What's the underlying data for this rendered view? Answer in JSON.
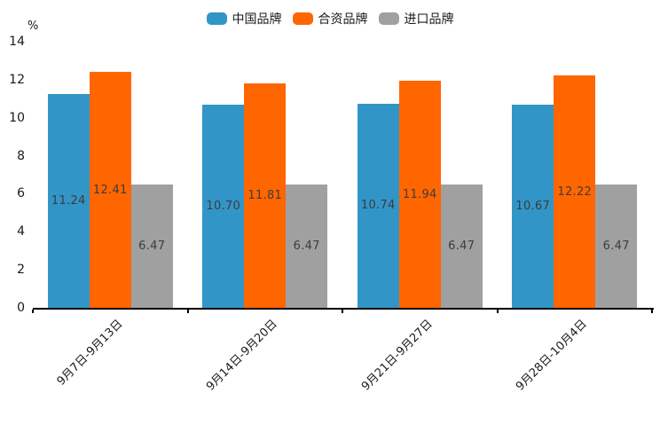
{
  "chart_data": {
    "type": "bar",
    "title": "",
    "ylabel": "%",
    "categories": [
      "9月7日-9月13日",
      "9月14日-9月20日",
      "9月21日-9月27日",
      "9月28日-10月4日"
    ],
    "series": [
      {
        "name": "中国品牌",
        "color": "#3295C8",
        "values": [
          11.24,
          10.7,
          10.74,
          10.67
        ]
      },
      {
        "name": "合资品牌",
        "color": "#FF6600",
        "values": [
          12.41,
          11.81,
          11.94,
          12.22
        ]
      },
      {
        "name": "进口品牌",
        "color": "#A0A0A0",
        "values": [
          6.47,
          6.47,
          6.47,
          6.47
        ]
      }
    ],
    "ylim": [
      0,
      14
    ],
    "ytick_step": 2,
    "grid": false,
    "legend_position": "top-center",
    "value_label_placement": "inside-middle",
    "value_label_decimals": 2,
    "value_label_color": "#3C3C3C",
    "axis_color": "#000000",
    "tick_text_color": "#1A1A1A"
  }
}
